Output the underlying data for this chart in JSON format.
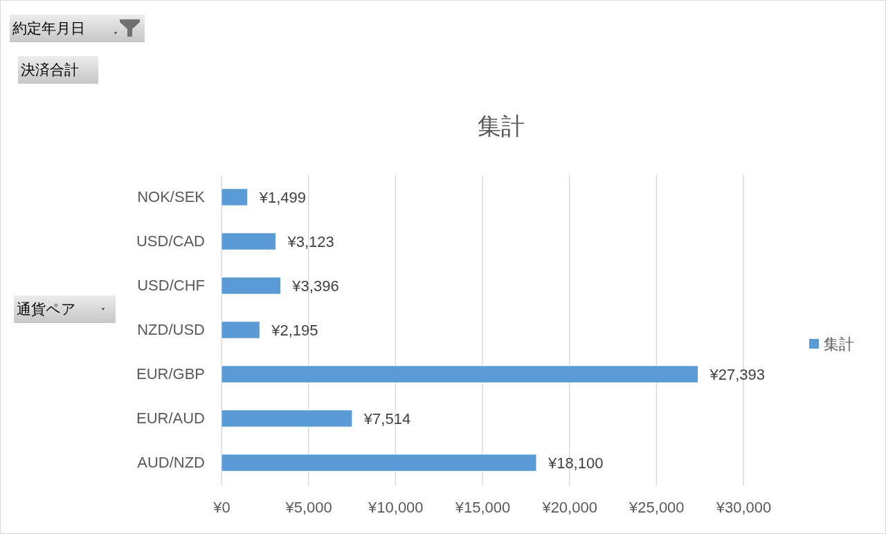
{
  "chart_data": {
    "type": "bar",
    "orientation": "horizontal",
    "title": "集計",
    "annotations": [
      "約定年月日",
      "決済合計",
      "通貨ペア"
    ],
    "categories": [
      "NOK/SEK",
      "USD/CAD",
      "USD/CHF",
      "NZD/USD",
      "EUR/GBP",
      "EUR/AUD",
      "AUD/NZD"
    ],
    "series": [
      {
        "name": "集計",
        "color": "#5b9bd5",
        "values": [
          1499,
          3123,
          3396,
          2195,
          27393,
          7514,
          18100
        ],
        "value_labels": [
          "¥1,499",
          "¥3,123",
          "¥3,396",
          "¥2,195",
          "¥27,393",
          "¥7,514",
          "¥18,100"
        ]
      }
    ],
    "xlim": [
      0,
      30000
    ],
    "xticks": [
      {
        "value": 0,
        "label": "¥0"
      },
      {
        "value": 5000,
        "label": "¥5,000"
      },
      {
        "value": 10000,
        "label": "¥10,000"
      },
      {
        "value": 15000,
        "label": "¥15,000"
      },
      {
        "value": 20000,
        "label": "¥20,000"
      },
      {
        "value": 25000,
        "label": "¥25,000"
      },
      {
        "value": 30000,
        "label": "¥30,000"
      }
    ],
    "grid": "x",
    "legend": "right"
  }
}
